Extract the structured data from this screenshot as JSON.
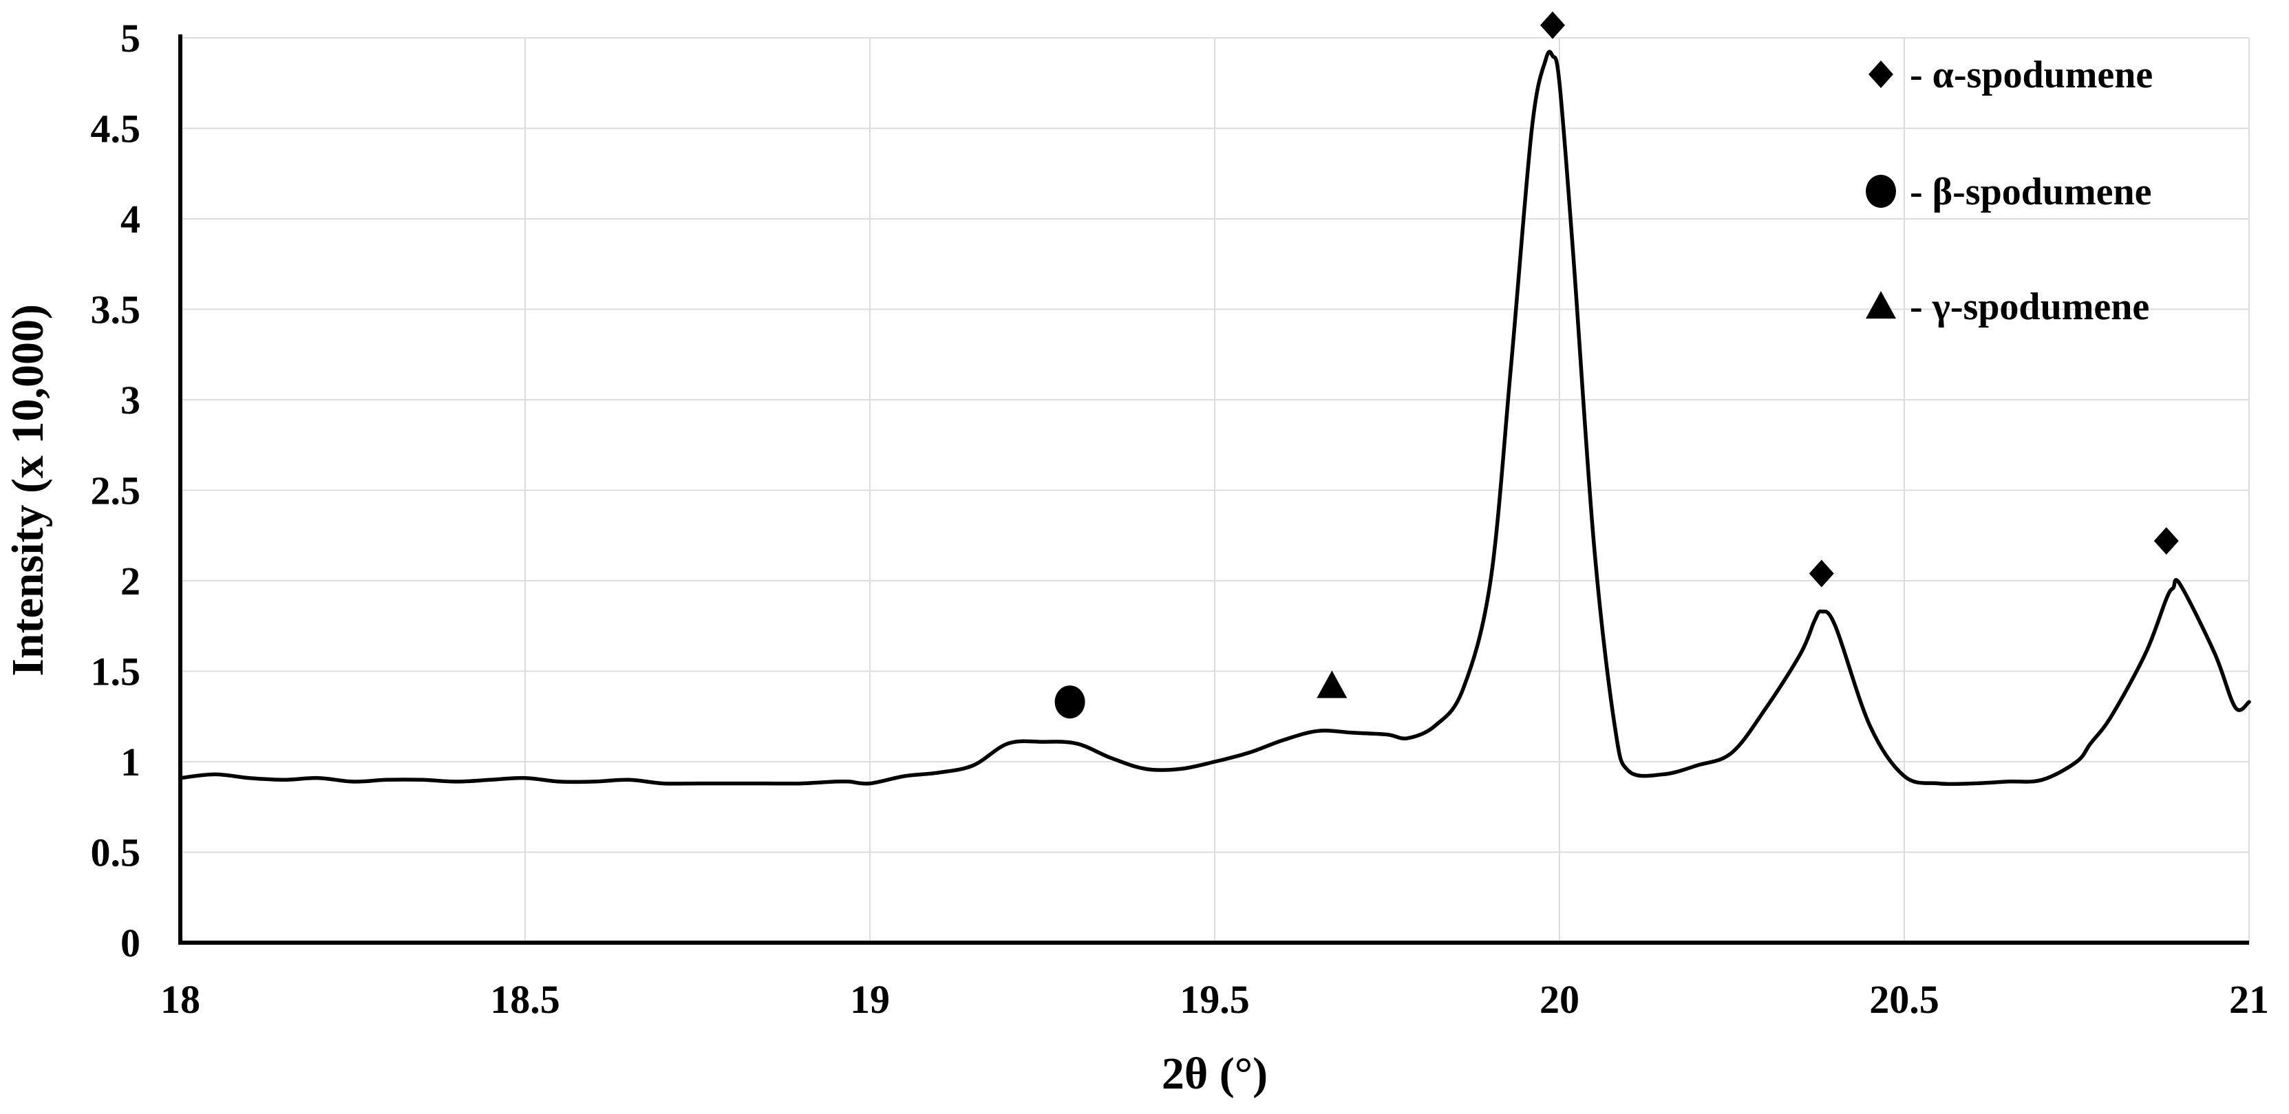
{
  "chart_data": {
    "type": "line",
    "title": "",
    "xlabel": "2θ (°)",
    "ylabel": "Intensity (x 10,000)",
    "xlim": [
      18,
      21
    ],
    "ylim": [
      0,
      5
    ],
    "x_ticks": [
      18,
      18.5,
      19,
      19.5,
      20,
      20.5,
      21
    ],
    "x_tick_labels": [
      "18",
      "18.5",
      "19",
      "19.5",
      "20",
      "20.5",
      "21"
    ],
    "y_ticks": [
      0,
      0.5,
      1,
      1.5,
      2,
      2.5,
      3,
      3.5,
      4,
      4.5,
      5
    ],
    "y_tick_labels": [
      "0",
      "0.5",
      "1",
      "1.5",
      "2",
      "2.5",
      "3",
      "3.5",
      "4",
      "4.5",
      "5"
    ],
    "grid": true,
    "legend_position": "top-right",
    "line_color": "#000000",
    "series": [
      {
        "x": [
          18.0,
          18.05,
          18.1,
          18.15,
          18.2,
          18.25,
          18.3,
          18.35,
          18.4,
          18.45,
          18.5,
          18.55,
          18.6,
          18.65,
          18.7,
          18.75,
          18.8,
          18.85,
          18.9,
          18.95,
          18.97,
          19.0,
          19.05,
          19.1,
          19.15,
          19.2,
          19.25,
          19.3,
          19.35,
          19.4,
          19.45,
          19.5,
          19.55,
          19.6,
          19.65,
          19.7,
          19.75,
          19.78,
          19.82,
          19.86,
          19.9,
          19.93,
          19.96,
          19.98,
          19.99,
          20.0,
          20.02,
          20.05,
          20.08,
          20.1,
          20.15,
          20.2,
          20.25,
          20.3,
          20.35,
          20.37,
          20.38,
          20.4,
          20.45,
          20.5,
          20.55,
          20.6,
          20.65,
          20.7,
          20.75,
          20.77,
          20.8,
          20.85,
          20.88,
          20.89,
          20.9,
          20.95,
          20.98,
          21.0
        ],
        "y": [
          0.91,
          0.93,
          0.91,
          0.9,
          0.91,
          0.89,
          0.9,
          0.9,
          0.89,
          0.9,
          0.91,
          0.89,
          0.89,
          0.9,
          0.88,
          0.88,
          0.88,
          0.88,
          0.88,
          0.89,
          0.89,
          0.88,
          0.92,
          0.94,
          0.98,
          1.1,
          1.11,
          1.1,
          1.02,
          0.96,
          0.96,
          1.0,
          1.05,
          1.12,
          1.17,
          1.16,
          1.15,
          1.13,
          1.2,
          1.4,
          2.0,
          3.2,
          4.5,
          4.88,
          4.9,
          4.75,
          3.8,
          2.2,
          1.2,
          0.95,
          0.93,
          0.98,
          1.05,
          1.3,
          1.6,
          1.78,
          1.83,
          1.75,
          1.2,
          0.92,
          0.88,
          0.88,
          0.89,
          0.9,
          1.0,
          1.1,
          1.25,
          1.6,
          1.9,
          1.96,
          1.98,
          1.6,
          1.3,
          1.33
        ]
      }
    ],
    "peak_markers": [
      {
        "shape": "diamond",
        "phase": "α-spodumene",
        "x": 19.99,
        "y": 5.07
      },
      {
        "shape": "diamond",
        "phase": "α-spodumene",
        "x": 20.38,
        "y": 2.04
      },
      {
        "shape": "diamond",
        "phase": "α-spodumene",
        "x": 20.88,
        "y": 2.22
      },
      {
        "shape": "circle",
        "phase": "β-spodumene",
        "x": 19.29,
        "y": 1.33
      },
      {
        "shape": "triangle",
        "phase": "γ-spodumene",
        "x": 19.67,
        "y": 1.42
      }
    ],
    "legend": [
      {
        "shape": "diamond",
        "label": "- α-spodumene"
      },
      {
        "shape": "circle",
        "label": "- β-spodumene"
      },
      {
        "shape": "triangle",
        "label": "- γ-spodumene"
      }
    ]
  }
}
